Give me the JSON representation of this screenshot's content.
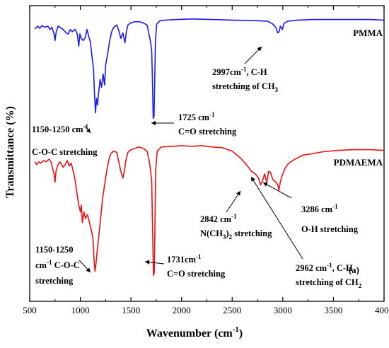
{
  "chart_data": {
    "type": "line",
    "xlabel": "Wavenumber (cm",
    "xlabel_sup": "-1",
    "xlabel_end": ")",
    "ylabel": "Transmittance (%)",
    "xlim": [
      500,
      4000
    ],
    "x_ticks": [
      500,
      1000,
      1500,
      2000,
      2500,
      3000,
      3500,
      4000
    ],
    "y_ticks_shown": false,
    "panel_label": "(a)",
    "series": [
      {
        "name": "PMMA",
        "color": "#1a1aff",
        "points": [
          [
            550,
            0.905
          ],
          [
            580,
            0.93
          ],
          [
            600,
            0.91
          ],
          [
            620,
            0.935
          ],
          [
            650,
            0.92
          ],
          [
            680,
            0.93
          ],
          [
            700,
            0.9
          ],
          [
            720,
            0.92
          ],
          [
            740,
            0.86
          ],
          [
            750,
            0.8
          ],
          [
            760,
            0.87
          ],
          [
            780,
            0.93
          ],
          [
            800,
            0.92
          ],
          [
            830,
            0.9
          ],
          [
            860,
            0.87
          ],
          [
            880,
            0.86
          ],
          [
            900,
            0.9
          ],
          [
            920,
            0.88
          ],
          [
            950,
            0.9
          ],
          [
            970,
            0.86
          ],
          [
            985,
            0.75
          ],
          [
            995,
            0.86
          ],
          [
            1010,
            0.82
          ],
          [
            1030,
            0.8
          ],
          [
            1050,
            0.83
          ],
          [
            1065,
            0.9
          ],
          [
            1080,
            0.85
          ],
          [
            1100,
            0.78
          ],
          [
            1120,
            0.62
          ],
          [
            1130,
            0.55
          ],
          [
            1140,
            0.32
          ],
          [
            1150,
            0.15
          ],
          [
            1160,
            0.28
          ],
          [
            1170,
            0.22
          ],
          [
            1180,
            0.32
          ],
          [
            1195,
            0.45
          ],
          [
            1210,
            0.38
          ],
          [
            1225,
            0.5
          ],
          [
            1240,
            0.4
          ],
          [
            1250,
            0.58
          ],
          [
            1270,
            0.68
          ],
          [
            1290,
            0.8
          ],
          [
            1310,
            0.88
          ],
          [
            1330,
            0.92
          ],
          [
            1360,
            0.94
          ],
          [
            1380,
            0.89
          ],
          [
            1400,
            0.82
          ],
          [
            1420,
            0.87
          ],
          [
            1440,
            0.78
          ],
          [
            1455,
            0.88
          ],
          [
            1470,
            0.94
          ],
          [
            1500,
            0.96
          ],
          [
            1540,
            0.97
          ],
          [
            1580,
            0.97
          ],
          [
            1620,
            0.96
          ],
          [
            1660,
            0.94
          ],
          [
            1680,
            0.85
          ],
          [
            1695,
            0.78
          ],
          [
            1705,
            0.7
          ],
          [
            1712,
            0.45
          ],
          [
            1720,
            0.1
          ],
          [
            1728,
            0.12
          ],
          [
            1735,
            0.45
          ],
          [
            1742,
            0.8
          ],
          [
            1755,
            0.95
          ],
          [
            1790,
            0.98
          ],
          [
            1850,
            0.985
          ],
          [
            1950,
            0.99
          ],
          [
            2100,
            0.995
          ],
          [
            2300,
            0.99
          ],
          [
            2500,
            0.985
          ],
          [
            2700,
            0.98
          ],
          [
            2850,
            0.975
          ],
          [
            2900,
            0.95
          ],
          [
            2930,
            0.92
          ],
          [
            2950,
            0.87
          ],
          [
            2965,
            0.88
          ],
          [
            2975,
            0.93
          ],
          [
            2997,
            0.9
          ],
          [
            3010,
            0.955
          ],
          [
            3050,
            0.975
          ],
          [
            3150,
            0.985
          ],
          [
            3300,
            0.99
          ],
          [
            3500,
            0.99
          ],
          [
            3700,
            0.99
          ],
          [
            3850,
            0.99
          ],
          [
            4000,
            0.985
          ]
        ]
      },
      {
        "name": "PDMAEMA",
        "color": "#ee1111",
        "points": [
          [
            550,
            0.87
          ],
          [
            570,
            0.85
          ],
          [
            590,
            0.87
          ],
          [
            610,
            0.86
          ],
          [
            640,
            0.88
          ],
          [
            660,
            0.87
          ],
          [
            690,
            0.89
          ],
          [
            710,
            0.87
          ],
          [
            740,
            0.78
          ],
          [
            750,
            0.72
          ],
          [
            760,
            0.8
          ],
          [
            780,
            0.85
          ],
          [
            800,
            0.87
          ],
          [
            830,
            0.83
          ],
          [
            850,
            0.85
          ],
          [
            870,
            0.88
          ],
          [
            890,
            0.84
          ],
          [
            910,
            0.86
          ],
          [
            930,
            0.8
          ],
          [
            950,
            0.73
          ],
          [
            970,
            0.62
          ],
          [
            985,
            0.55
          ],
          [
            1000,
            0.5
          ],
          [
            1010,
            0.55
          ],
          [
            1020,
            0.42
          ],
          [
            1035,
            0.5
          ],
          [
            1050,
            0.45
          ],
          [
            1070,
            0.48
          ],
          [
            1090,
            0.42
          ],
          [
            1110,
            0.36
          ],
          [
            1125,
            0.3
          ],
          [
            1135,
            0.15
          ],
          [
            1145,
            0.06
          ],
          [
            1155,
            0.12
          ],
          [
            1165,
            0.2
          ],
          [
            1180,
            0.3
          ],
          [
            1200,
            0.45
          ],
          [
            1220,
            0.6
          ],
          [
            1240,
            0.7
          ],
          [
            1260,
            0.8
          ],
          [
            1280,
            0.88
          ],
          [
            1300,
            0.93
          ],
          [
            1330,
            0.95
          ],
          [
            1360,
            0.94
          ],
          [
            1380,
            0.87
          ],
          [
            1400,
            0.8
          ],
          [
            1420,
            0.75
          ],
          [
            1435,
            0.8
          ],
          [
            1450,
            0.88
          ],
          [
            1470,
            0.94
          ],
          [
            1500,
            0.96
          ],
          [
            1540,
            0.97
          ],
          [
            1580,
            0.98
          ],
          [
            1620,
            0.97
          ],
          [
            1660,
            0.95
          ],
          [
            1680,
            0.88
          ],
          [
            1695,
            0.8
          ],
          [
            1705,
            0.72
          ],
          [
            1713,
            0.42
          ],
          [
            1722,
            0.03
          ],
          [
            1730,
            0.05
          ],
          [
            1738,
            0.45
          ],
          [
            1745,
            0.82
          ],
          [
            1760,
            0.95
          ],
          [
            1800,
            0.98
          ],
          [
            1900,
            0.985
          ],
          [
            2000,
            0.99
          ],
          [
            2100,
            0.985
          ],
          [
            2200,
            0.99
          ],
          [
            2300,
            0.98
          ],
          [
            2400,
            0.975
          ],
          [
            2500,
            0.95
          ],
          [
            2580,
            0.9
          ],
          [
            2640,
            0.85
          ],
          [
            2690,
            0.8
          ],
          [
            2730,
            0.78
          ],
          [
            2760,
            0.75
          ],
          [
            2780,
            0.7
          ],
          [
            2800,
            0.73
          ],
          [
            2820,
            0.78
          ],
          [
            2842,
            0.72
          ],
          [
            2860,
            0.8
          ],
          [
            2880,
            0.79
          ],
          [
            2900,
            0.74
          ],
          [
            2930,
            0.72
          ],
          [
            2950,
            0.7
          ],
          [
            2962,
            0.66
          ],
          [
            2975,
            0.72
          ],
          [
            2990,
            0.76
          ],
          [
            3020,
            0.82
          ],
          [
            3060,
            0.86
          ],
          [
            3120,
            0.89
          ],
          [
            3200,
            0.92
          ],
          [
            3286,
            0.93
          ],
          [
            3400,
            0.945
          ],
          [
            3550,
            0.955
          ],
          [
            3700,
            0.96
          ],
          [
            3850,
            0.96
          ],
          [
            4000,
            0.955
          ]
        ]
      }
    ],
    "annotations": [
      {
        "lines": [
          "2997cm^-1, C-H",
          "stretching of CH_3"
        ]
      },
      {
        "lines": [
          "1725 cm^-1",
          "C=O stretching"
        ]
      },
      {
        "lines": [
          "1150-1250 cm^-1",
          "C-O-C stretching"
        ]
      },
      {
        "lines": [
          "2842 cm^-1",
          "N(CH_3)_2 stretching"
        ]
      },
      {
        "lines": [
          "3286 cm^-1",
          "O-H stretching"
        ]
      },
      {
        "lines": [
          "1150-1250",
          "cm^-1 C-O-C",
          "stretching"
        ]
      },
      {
        "lines": [
          "1731cm^-1",
          "C=O stretching"
        ]
      },
      {
        "lines": [
          "2962 cm^-1, C-H",
          "stretching of CH_2"
        ]
      }
    ]
  }
}
